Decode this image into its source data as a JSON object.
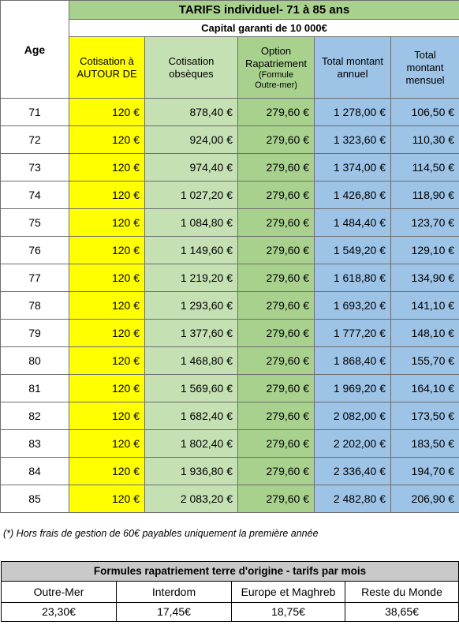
{
  "header": {
    "title": "TARIFS individuel- 71 à 85 ans",
    "capital": "Capital garanti de 10 000€",
    "age_label": "Age",
    "col_cotisation_line1": "Cotisation à",
    "col_cotisation_line2": "AUTOUR DE",
    "col_obseques_line1": "Cotisation",
    "col_obseques_line2": "obsèques",
    "col_option_line1": "Option",
    "col_option_line2": "Rapatriement",
    "col_option_line3": "(Formule",
    "col_option_line4": "Outre-mer)",
    "col_annuel_line1": "Total montant",
    "col_annuel_line2": "annuel",
    "col_mensuel_line1": "Total",
    "col_mensuel_line2": "montant",
    "col_mensuel_line3": "mensuel"
  },
  "rows": [
    {
      "age": "71",
      "cotisation": "120 €",
      "obseques": "878,40 €",
      "option": "279,60 €",
      "annuel": "1 278,00 €",
      "mensuel": "106,50 €"
    },
    {
      "age": "72",
      "cotisation": "120 €",
      "obseques": "924,00 €",
      "option": "279,60 €",
      "annuel": "1 323,60 €",
      "mensuel": "110,30 €"
    },
    {
      "age": "73",
      "cotisation": "120 €",
      "obseques": "974,40 €",
      "option": "279,60 €",
      "annuel": "1 374,00 €",
      "mensuel": "114,50 €"
    },
    {
      "age": "74",
      "cotisation": "120 €",
      "obseques": "1 027,20 €",
      "option": "279,60 €",
      "annuel": "1 426,80 €",
      "mensuel": "118,90 €"
    },
    {
      "age": "75",
      "cotisation": "120 €",
      "obseques": "1 084,80 €",
      "option": "279,60 €",
      "annuel": "1 484,40 €",
      "mensuel": "123,70 €"
    },
    {
      "age": "76",
      "cotisation": "120 €",
      "obseques": "1 149,60 €",
      "option": "279,60 €",
      "annuel": "1 549,20 €",
      "mensuel": "129,10 €"
    },
    {
      "age": "77",
      "cotisation": "120 €",
      "obseques": "1 219,20 €",
      "option": "279,60 €",
      "annuel": "1 618,80 €",
      "mensuel": "134,90 €"
    },
    {
      "age": "78",
      "cotisation": "120 €",
      "obseques": "1 293,60 €",
      "option": "279,60 €",
      "annuel": "1 693,20 €",
      "mensuel": "141,10 €"
    },
    {
      "age": "79",
      "cotisation": "120 €",
      "obseques": "1 377,60 €",
      "option": "279,60 €",
      "annuel": "1 777,20 €",
      "mensuel": "148,10 €"
    },
    {
      "age": "80",
      "cotisation": "120 €",
      "obseques": "1 468,80 €",
      "option": "279,60 €",
      "annuel": "1 868,40 €",
      "mensuel": "155,70 €"
    },
    {
      "age": "81",
      "cotisation": "120 €",
      "obseques": "1 569,60 €",
      "option": "279,60 €",
      "annuel": "1 969,20 €",
      "mensuel": "164,10 €"
    },
    {
      "age": "82",
      "cotisation": "120 €",
      "obseques": "1 682,40 €",
      "option": "279,60 €",
      "annuel": "2 082,00 €",
      "mensuel": "173,50 €"
    },
    {
      "age": "83",
      "cotisation": "120 €",
      "obseques": "1 802,40 €",
      "option": "279,60 €",
      "annuel": "2 202,00 €",
      "mensuel": "183,50 €"
    },
    {
      "age": "84",
      "cotisation": "120 €",
      "obseques": "1 936,80 €",
      "option": "279,60 €",
      "annuel": "2 336,40 €",
      "mensuel": "194,70 €"
    },
    {
      "age": "85",
      "cotisation": "120 €",
      "obseques": "2 083,20 €",
      "option": "279,60 €",
      "annuel": "2 482,80 €",
      "mensuel": "206,90 €"
    }
  ],
  "footnote": "(*) Hors frais de gestion de 60€ payables uniquement la première année",
  "formules": {
    "title": "Formules rapatriement terre d'origine - tarifs par mois",
    "headers": [
      "Outre-Mer",
      "Interdom",
      "Europe et Maghreb",
      "Reste du Monde"
    ],
    "values": [
      "23,30€",
      "17,45€",
      "18,75€",
      "38,65€"
    ]
  },
  "colors": {
    "yellow": "#ffff00",
    "light_green": "#c5e0b3",
    "green": "#a9d18e",
    "blue": "#9dc3e6",
    "grey_title": "#c9c9c9"
  }
}
